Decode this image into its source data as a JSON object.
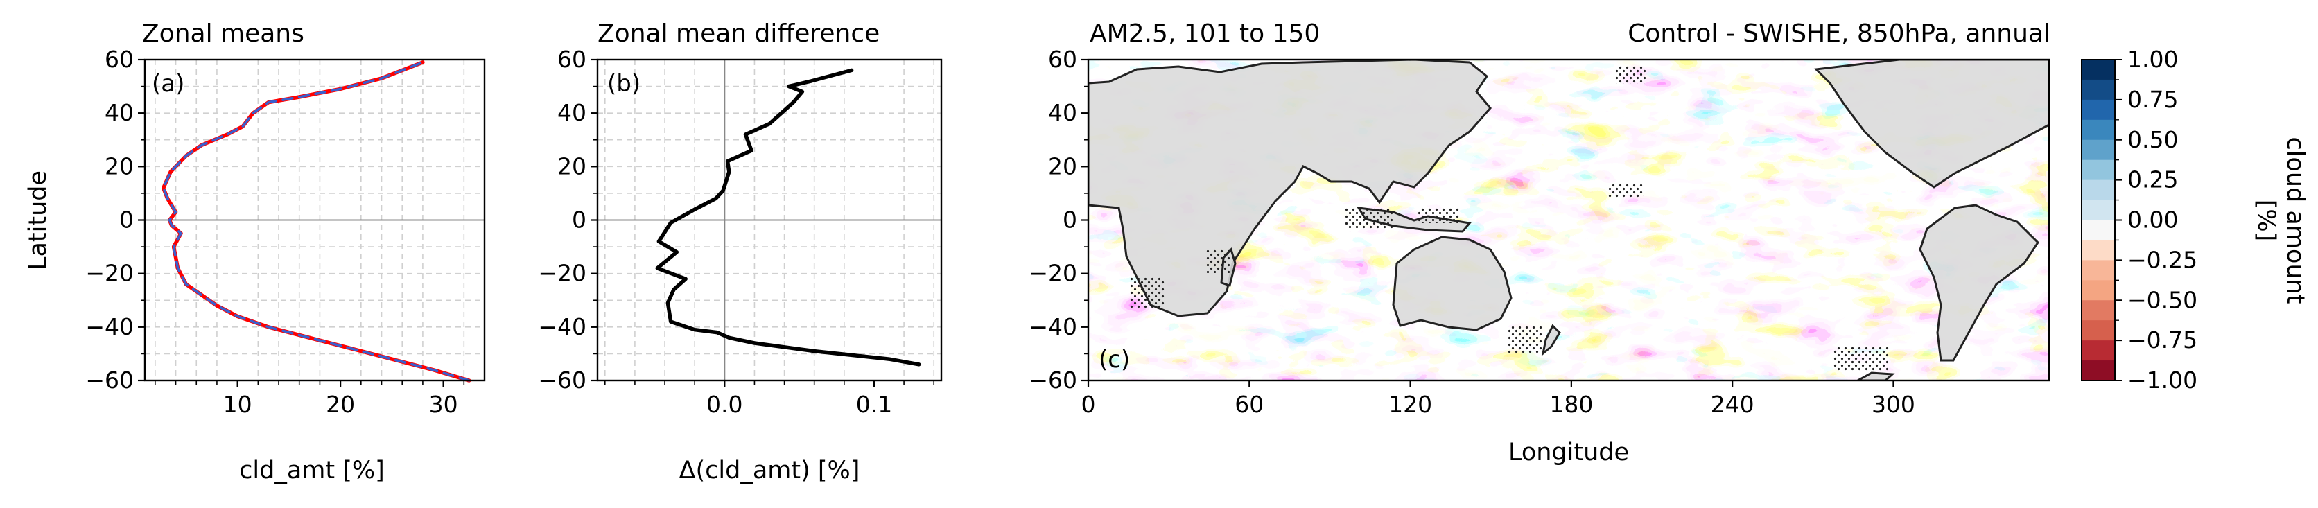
{
  "figure": {
    "panel_a": {
      "title": "Zonal means",
      "tag": "(a)",
      "xlabel": "cld_amt [%]",
      "ylabel": "Latitude",
      "xticks": [
        "10",
        "20",
        "30"
      ],
      "yticks": [
        "60",
        "40",
        "20",
        "0",
        "−20",
        "−40",
        "−60"
      ]
    },
    "panel_b": {
      "title": "Zonal mean difference",
      "tag": "(b)",
      "xlabel": "Δ(cld_amt) [%]",
      "xticks": [
        "0.0",
        "0.1"
      ],
      "yticks": [
        "60",
        "40",
        "20",
        "0",
        "−20",
        "−40",
        "−60"
      ]
    },
    "panel_c": {
      "title_left": "AM2.5, 101 to 150",
      "title_right": "Control - SWISHE, 850hPa, annual",
      "tag": "(c)",
      "xlabel": "Longitude",
      "xticks": [
        "0",
        "60",
        "120",
        "180",
        "240",
        "300"
      ],
      "yticks": [
        "60",
        "40",
        "20",
        "0",
        "−20",
        "−40",
        "−60"
      ]
    },
    "colorbar": {
      "label_line1": "cloud amount",
      "label_line2": "[%]",
      "ticks": [
        "1.00",
        "0.75",
        "0.50",
        "0.25",
        "0.00",
        "−0.25",
        "−0.50",
        "−0.75",
        "−1.00"
      ],
      "colors": [
        "#053061",
        "#134c87",
        "#2166ac",
        "#3a87bd",
        "#5fa2cb",
        "#92c5de",
        "#b9d8ea",
        "#d1e5f0",
        "#f7f7f7",
        "#fddbc7",
        "#f8b698",
        "#f4a582",
        "#e27a62",
        "#d6604d",
        "#b82b33",
        "#8e0d25"
      ]
    }
  },
  "chart_data": [
    {
      "type": "line",
      "title": "Zonal means",
      "xlabel": "cld_amt [%]",
      "ylabel": "Latitude",
      "xlim": [
        1,
        34
      ],
      "ylim": [
        -60,
        60
      ],
      "grid": true,
      "series": [
        {
          "color": "#ff0000",
          "x": [
            32.5,
            29,
            25,
            21,
            17,
            13,
            10,
            8,
            6.5,
            5,
            4.2,
            3.8,
            4.5,
            3.6,
            3.4,
            4.0,
            3.2,
            2.8,
            3.5,
            5.0,
            6.5,
            9,
            10.5,
            11.5,
            13,
            16,
            20,
            24,
            28
          ],
          "y": [
            -60,
            -56,
            -52,
            -48,
            -44,
            -40,
            -36,
            -32,
            -28,
            -24,
            -18,
            -10,
            -5,
            -2,
            0,
            3,
            8,
            12,
            18,
            24,
            28,
            32,
            35,
            40,
            44,
            46,
            49,
            53,
            59
          ]
        },
        {
          "color": "#3a5fcd",
          "style": "dashed",
          "x": [
            32.5,
            29,
            25,
            21,
            17,
            13,
            10,
            8,
            6.5,
            5,
            4.2,
            3.8,
            4.5,
            3.6,
            3.4,
            4.0,
            3.2,
            2.8,
            3.5,
            5.0,
            6.5,
            9,
            10.5,
            11.5,
            13,
            16,
            20,
            24,
            28
          ],
          "y": [
            -60,
            -56,
            -52,
            -48,
            -44,
            -40,
            -36,
            -32,
            -28,
            -24,
            -18,
            -10,
            -5,
            -2,
            0,
            3,
            8,
            12,
            18,
            24,
            28,
            32,
            35,
            40,
            44,
            46,
            49,
            53,
            59
          ]
        }
      ]
    },
    {
      "type": "line",
      "title": "Zonal mean difference",
      "xlabel": "Δ(cld_amt) [%]",
      "xlim": [
        -0.085,
        0.145
      ],
      "ylim": [
        -60,
        60
      ],
      "grid": true,
      "series": [
        {
          "color": "#000000",
          "x": [
            0.13,
            0.11,
            0.06,
            0.02,
            0.003,
            -0.005,
            -0.02,
            -0.036,
            -0.038,
            -0.034,
            -0.026,
            -0.045,
            -0.032,
            -0.044,
            -0.036,
            -0.02,
            -0.006,
            -0.001,
            0.003,
            0.002,
            0.018,
            0.014,
            0.03,
            0.046,
            0.052,
            0.043,
            0.058,
            0.085
          ],
          "y": [
            -54,
            -52,
            -49,
            -46,
            -44,
            -42,
            -41,
            -38,
            -31,
            -26,
            -22,
            -18,
            -12,
            -8,
            -1,
            4,
            8,
            11,
            18,
            22,
            26,
            32,
            36,
            44,
            48,
            50,
            52,
            56
          ]
        }
      ]
    },
    {
      "type": "heatmap",
      "title": "AM2.5, 101 to 150",
      "subtitle": "Control - SWISHE, 850hPa, annual",
      "xlabel": "Longitude",
      "xlim": [
        0,
        358
      ],
      "ylim": [
        -60,
        60
      ],
      "colorbar_label": "cloud amount [%]",
      "colorbar_range": [
        -1.0,
        1.0
      ],
      "levels": [
        -1.0,
        -0.875,
        -0.75,
        -0.625,
        -0.5,
        -0.375,
        -0.25,
        -0.125,
        0,
        0.125,
        0.25,
        0.375,
        0.5,
        0.625,
        0.75,
        0.875,
        1.0
      ]
    }
  ]
}
